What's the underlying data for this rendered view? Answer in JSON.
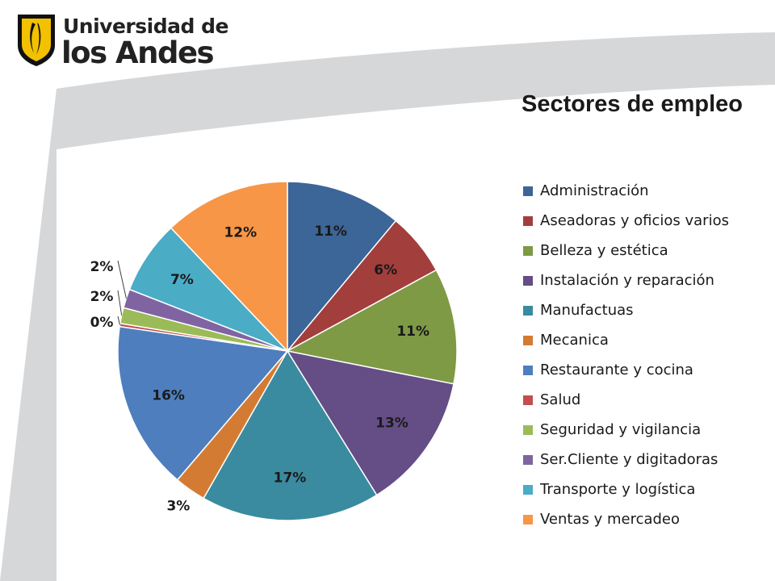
{
  "logo": {
    "line1": "Universidad de",
    "line2": "los Andes",
    "icon": "university-shield-logo"
  },
  "chart_data": {
    "type": "pie",
    "title": "Sectores de empleo",
    "legend_position": "right",
    "categories": [
      "Administración",
      "Aseadoras y oficios varios",
      "Belleza y estética",
      "Instalación y reparación",
      "Manufactuas",
      "Mecanica",
      "Restaurante y cocina",
      "Salud",
      "Seguridad y vigilancia",
      "Ser.Cliente y digitadoras",
      "Transporte y logística",
      "Ventas y mercadeo"
    ],
    "values": [
      11,
      6,
      11,
      13,
      17,
      3,
      16,
      0.3,
      1.5,
      1.8,
      7,
      12
    ],
    "data_labels": [
      "11%",
      "6%",
      "11%",
      "13%",
      "17%",
      "3%",
      "16%",
      "0%",
      "2%",
      "2%",
      "7%",
      "12%"
    ],
    "colors": [
      "#3C6598",
      "#A23E3C",
      "#7E9A45",
      "#654D86",
      "#3A8BA0",
      "#D47B33",
      "#4E7EBE",
      "#C0504D",
      "#9BBB59",
      "#8064A2",
      "#4BACC6",
      "#F79646"
    ]
  }
}
